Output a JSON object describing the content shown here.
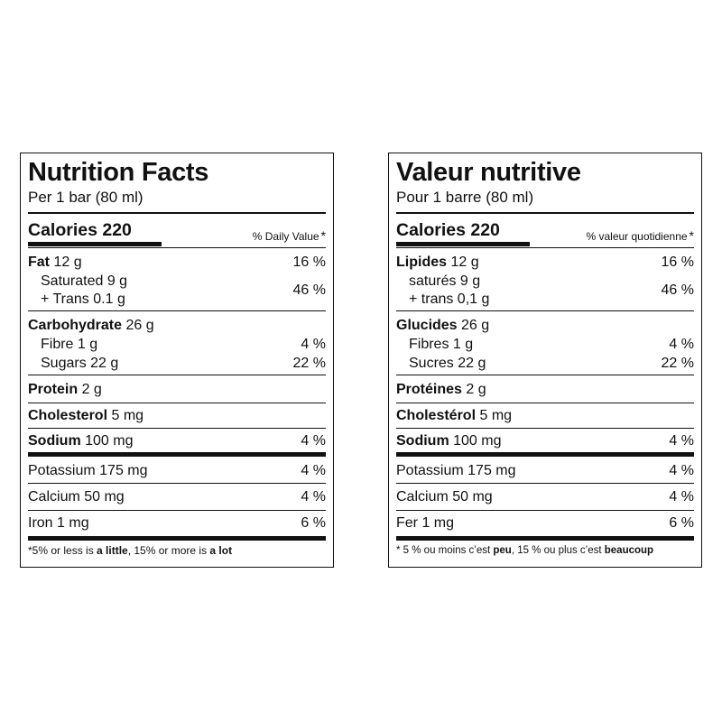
{
  "english": {
    "title": "Nutrition Facts",
    "serving": "Per 1 bar (80 ml)",
    "calories_label": "Calories 220",
    "dv_header": "% Daily Value",
    "dv_asterisk": "*",
    "fat_name": "Fat",
    "fat_amount": "12 g",
    "fat_dv": "16 %",
    "saturated": "Saturated 9 g",
    "trans": "+ Trans 0.1 g",
    "satfat_dv": "46 %",
    "carb_name": "Carbohydrate",
    "carb_amount": "26 g",
    "fibre": "Fibre 1 g",
    "fibre_dv": "4 %",
    "sugars": "Sugars 22 g",
    "sugars_dv": "22 %",
    "protein_name": "Protein",
    "protein_amount": "2 g",
    "chol_name": "Cholesterol",
    "chol_amount": "5 mg",
    "sodium_name": "Sodium",
    "sodium_amount": "100 mg",
    "sodium_dv": "4 %",
    "potassium": "Potassium 175 mg",
    "potassium_dv": "4 %",
    "calcium": "Calcium 50 mg",
    "calcium_dv": "4 %",
    "iron": "Iron 1 mg",
    "iron_dv": "6 %",
    "footnote_a": "*5% or less is ",
    "footnote_b": "a little",
    "footnote_c": ", 15% or more is ",
    "footnote_d": "a lot"
  },
  "french": {
    "title": "Valeur nutritive",
    "serving": "Pour 1 barre (80 ml)",
    "calories_label": "Calories 220",
    "dv_header": "% valeur quotidienne",
    "dv_asterisk": "*",
    "fat_name": "Lipides",
    "fat_amount": "12 g",
    "fat_dv": "16 %",
    "saturated": "saturés 9 g",
    "trans": "+ trans 0,1 g",
    "satfat_dv": "46 %",
    "carb_name": "Glucides",
    "carb_amount": "26 g",
    "fibre": "Fibres 1 g",
    "fibre_dv": "4 %",
    "sugars": "Sucres 22 g",
    "sugars_dv": "22 %",
    "protein_name": "Protéines",
    "protein_amount": "2 g",
    "chol_name": "Cholestérol",
    "chol_amount": "5 mg",
    "sodium_name": "Sodium",
    "sodium_amount": "100 mg",
    "sodium_dv": "4 %",
    "potassium": "Potassium 175 mg",
    "potassium_dv": "4 %",
    "calcium": "Calcium 50 mg",
    "calcium_dv": "4 %",
    "iron": "Fer 1 mg",
    "iron_dv": "6 %",
    "footnote_a": "* 5 % ou moins c’est ",
    "footnote_b": "peu",
    "footnote_c": ", 15 % ou plus c’est ",
    "footnote_d": "beaucoup"
  }
}
